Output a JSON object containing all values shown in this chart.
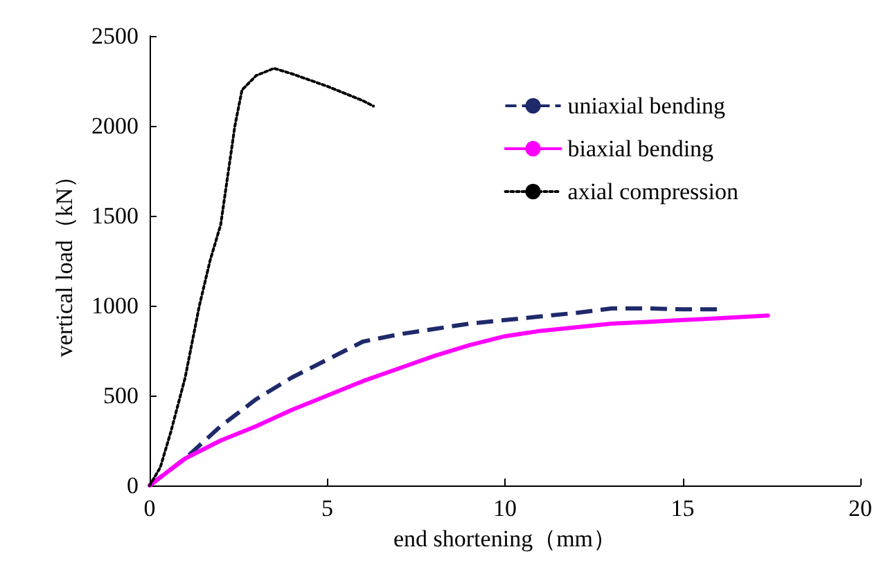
{
  "chart_data": {
    "type": "line",
    "xlabel": "end shortening（mm）",
    "ylabel": "vertical load（kN）",
    "xlim": [
      0,
      20
    ],
    "xticks": [
      0,
      5,
      10,
      15,
      20
    ],
    "ylim": [
      0,
      2500
    ],
    "yticks": [
      0,
      500,
      1000,
      1500,
      2000,
      2500
    ],
    "grid": false,
    "legend": "top right",
    "marker": "none",
    "series": [
      {
        "name": "uniaxial bending",
        "color": "#1f2a6b",
        "line_style": "dashed",
        "x": [
          0,
          1,
          2,
          3,
          4,
          5,
          6,
          7,
          8,
          9,
          10,
          11,
          12,
          13,
          14,
          15,
          16
        ],
        "values": [
          0,
          150,
          330,
          480,
          600,
          700,
          800,
          840,
          870,
          900,
          920,
          940,
          960,
          985,
          985,
          980,
          980
        ]
      },
      {
        "name": "biaxial bending",
        "color": "#ff00ff",
        "line_style": "solid",
        "x": [
          0,
          1,
          2,
          3,
          4,
          5,
          6,
          7,
          8,
          9,
          10,
          11,
          12,
          13,
          14,
          15,
          16,
          17.4
        ],
        "values": [
          0,
          150,
          250,
          330,
          420,
          500,
          580,
          650,
          720,
          780,
          830,
          860,
          880,
          900,
          910,
          920,
          930,
          945
        ]
      },
      {
        "name": "axial compression",
        "color": "#000000",
        "line_style": "dotted",
        "x": [
          0,
          0.3,
          0.6,
          1,
          1.4,
          1.7,
          2,
          2.4,
          2.6,
          3,
          3.5,
          4,
          5,
          6,
          6.3
        ],
        "values": [
          0,
          100,
          300,
          600,
          1000,
          1250,
          1450,
          2000,
          2200,
          2280,
          2320,
          2290,
          2220,
          2140,
          2110
        ]
      }
    ]
  }
}
